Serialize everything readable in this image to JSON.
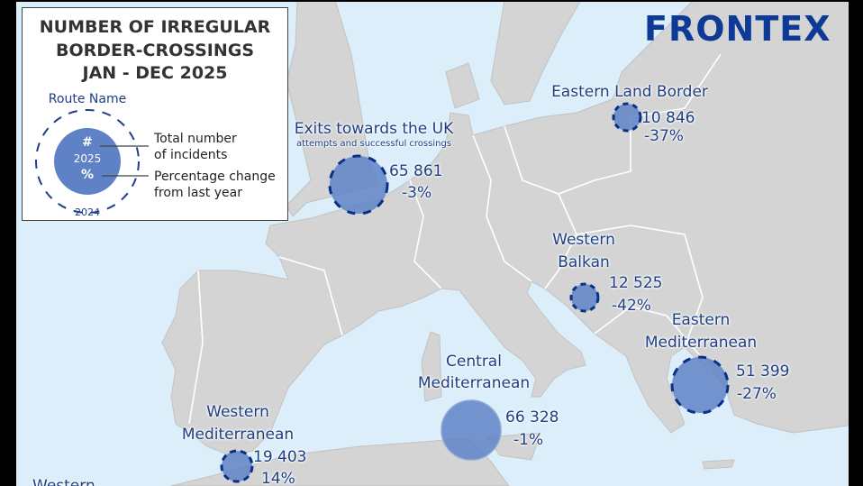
{
  "legend": {
    "title_lines": [
      "NUMBER OF IRREGULAR",
      "BORDER-CROSSINGS",
      "JAN - DEC 2025"
    ],
    "route_name": "Route Name",
    "circle_hash": "#",
    "circle_year": "2025",
    "circle_percent": "%",
    "ring_year": "2024",
    "total_lines": [
      "Total number",
      "of incidents"
    ],
    "change_lines": [
      "Percentage change",
      "from last year"
    ]
  },
  "logo": "FRONTEX",
  "colors": {
    "sea": "#dceefa",
    "land": "#d4d4d4",
    "circle_fill": "#5f82c6",
    "ring": "#0a2f86",
    "text": "#1d3f86"
  },
  "routes": [
    {
      "name_lines": [
        "Exits towards the UK"
      ],
      "subtitle": "attempts and successful crossings",
      "count": "65 861",
      "change": "-3%"
    },
    {
      "name_lines": [
        "Eastern Land Border"
      ],
      "count": "10 846",
      "change": "-37%"
    },
    {
      "name_lines": [
        "Western",
        "Balkan"
      ],
      "count": "12 525",
      "change": "-42%"
    },
    {
      "name_lines": [
        "Eastern",
        "Mediterranean"
      ],
      "count": "51 399",
      "change": "-27%"
    },
    {
      "name_lines": [
        "Central",
        "Mediterranean"
      ],
      "count": "66 328",
      "change": "-1%"
    },
    {
      "name_lines": [
        "Western",
        "Mediterranean"
      ],
      "count": "19 403",
      "change": "14%"
    },
    {
      "name_lines": [
        "Western"
      ]
    }
  ]
}
